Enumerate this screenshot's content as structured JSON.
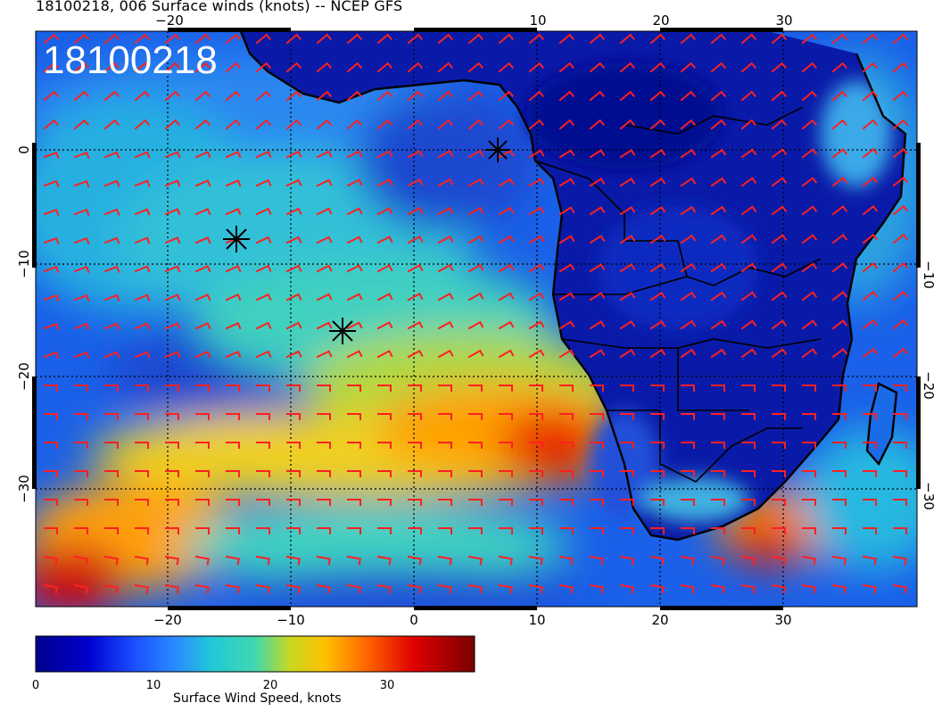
{
  "header": {
    "title": "18100218, 006 Surface winds (knots) -- NCEP GFS",
    "stamp": "18100218"
  },
  "map": {
    "x_ticks": [
      "−20",
      "−10",
      "0",
      "10",
      "20",
      "30"
    ],
    "y_ticks": [
      "0",
      "−10",
      "−20",
      "−30"
    ],
    "star_markers": [
      "station-1",
      "station-2",
      "station-3"
    ]
  },
  "colorbar": {
    "title": "Surface Wind Speed, knots",
    "ticks": [
      "0",
      "10",
      "20",
      "30"
    ],
    "colors": [
      "#00008b",
      "#0000cd",
      "#1a4cff",
      "#2a8cff",
      "#20c8d8",
      "#40d8b0",
      "#c8d820",
      "#ffc000",
      "#ff6000",
      "#e00000",
      "#7a0000"
    ]
  },
  "colors": {
    "barb": "#ff2020",
    "land": "#0a1aa0",
    "coast": "#000000",
    "grid": "#000000"
  }
}
